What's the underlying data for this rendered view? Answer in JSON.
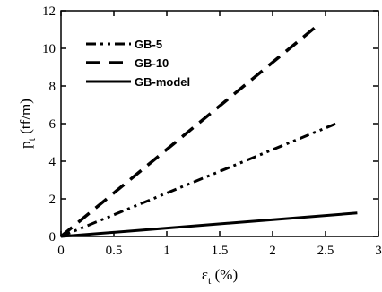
{
  "chart_data": {
    "type": "line",
    "xlabel": "ε t (%)",
    "ylabel": "p t (tf/m)",
    "xlim": [
      0,
      3
    ],
    "ylim": [
      0,
      12
    ],
    "xticks": [
      "0",
      "0.5",
      "1",
      "1.5",
      "2",
      "2.5",
      "3"
    ],
    "yticks": [
      "0",
      "2",
      "4",
      "6",
      "8",
      "10",
      "12"
    ],
    "grid": false,
    "legend_position": "top-left",
    "series": [
      {
        "name": "GB-5",
        "style": "dash-dot-dot",
        "x": [
          0,
          2.6
        ],
        "y": [
          0,
          6.0
        ]
      },
      {
        "name": "GB-10",
        "style": "dashed",
        "x": [
          0,
          2.42
        ],
        "y": [
          0,
          11.2
        ]
      },
      {
        "name": "GB-model",
        "style": "solid",
        "x": [
          0,
          2.8
        ],
        "y": [
          0,
          1.25
        ]
      }
    ]
  }
}
